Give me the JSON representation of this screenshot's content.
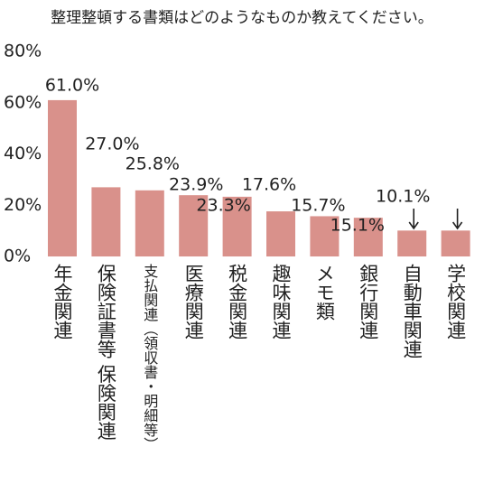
{
  "chart_data": {
    "type": "bar",
    "title": "整理整頓する書類はどのようなものか教えてください。",
    "categories": [
      "年金関連",
      "保険証書等 保険関連",
      "支払関連（領収書・明細等）",
      "医療関連",
      "税金関連",
      "趣味関連",
      "メモ類",
      "銀行関連",
      "自動車関連",
      "学校関連"
    ],
    "values": [
      61.0,
      27.0,
      25.8,
      23.9,
      23.3,
      17.6,
      15.7,
      15.1,
      10.1,
      10.1
    ],
    "value_labels": [
      "61.0%",
      "27.0%",
      "25.8%",
      "23.9%",
      "23.3%",
      "17.6%",
      "15.7%",
      "15.1%",
      "10.1%",
      null
    ],
    "color": "#d9918b",
    "ylim": [
      0,
      80
    ],
    "yticks": [
      {
        "value": 0,
        "label": "0%"
      },
      {
        "value": 20,
        "label": "20%"
      },
      {
        "value": 40,
        "label": "40%"
      },
      {
        "value": 60,
        "label": "60%"
      },
      {
        "value": 80,
        "label": "80%"
      }
    ],
    "grid": false
  }
}
